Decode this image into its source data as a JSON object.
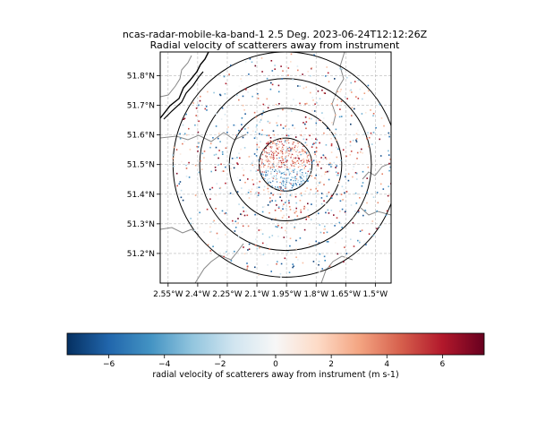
{
  "chart_data": [
    {
      "type": "scatter",
      "title": "ncas-radar-mobile-ka-band-1 2.5 Deg. 2023-06-24T12:12:26Z",
      "subtitle": "Radial velocity of scatterers away from instrument",
      "x_ticks": [
        {
          "value": -2.55,
          "label": "2.55°W"
        },
        {
          "value": -2.4,
          "label": "2.4°W"
        },
        {
          "value": -2.25,
          "label": "2.25°W"
        },
        {
          "value": -2.1,
          "label": "2.1°W"
        },
        {
          "value": -1.95,
          "label": "1.95°W"
        },
        {
          "value": -1.8,
          "label": "1.8°W"
        },
        {
          "value": -1.65,
          "label": "1.65°W"
        },
        {
          "value": -1.5,
          "label": "1.5°W"
        }
      ],
      "y_ticks": [
        {
          "value": 51.8,
          "label": "51.8°N"
        },
        {
          "value": 51.7,
          "label": "51.7°N"
        },
        {
          "value": 51.6,
          "label": "51.6°N"
        },
        {
          "value": 51.5,
          "label": "51.5°N"
        },
        {
          "value": 51.4,
          "label": "51.4°N"
        },
        {
          "value": 51.3,
          "label": "51.3°N"
        },
        {
          "value": 51.2,
          "label": "51.2°N"
        }
      ],
      "xlim": [
        -2.59,
        -1.42
      ],
      "ylim": [
        51.1,
        51.88
      ],
      "grid": true,
      "center": {
        "lon": -1.955,
        "lat": 51.5
      },
      "range_rings_lon_radius": [
        0.134,
        0.285,
        0.435,
        0.57
      ],
      "colormap": "RdBu_r",
      "value_range": [
        -7.5,
        7.5
      ]
    },
    {
      "type": "colorbar",
      "label": "radial velocity of scatterers away from instrument (m s-1)",
      "range": [
        -7.5,
        7.5
      ],
      "ticks": [
        {
          "value": -6,
          "label": "−6"
        },
        {
          "value": -4,
          "label": "−4"
        },
        {
          "value": -2,
          "label": "−2"
        },
        {
          "value": 0,
          "label": "0"
        },
        {
          "value": 2,
          "label": "2"
        },
        {
          "value": 4,
          "label": "4"
        },
        {
          "value": 6,
          "label": "6"
        }
      ],
      "colors": [
        "#053061",
        "#2166ac",
        "#4393c3",
        "#92c5de",
        "#d1e5f0",
        "#f7f7f7",
        "#fddbc7",
        "#f4a582",
        "#d6604d",
        "#b2182b",
        "#67001f"
      ]
    }
  ]
}
